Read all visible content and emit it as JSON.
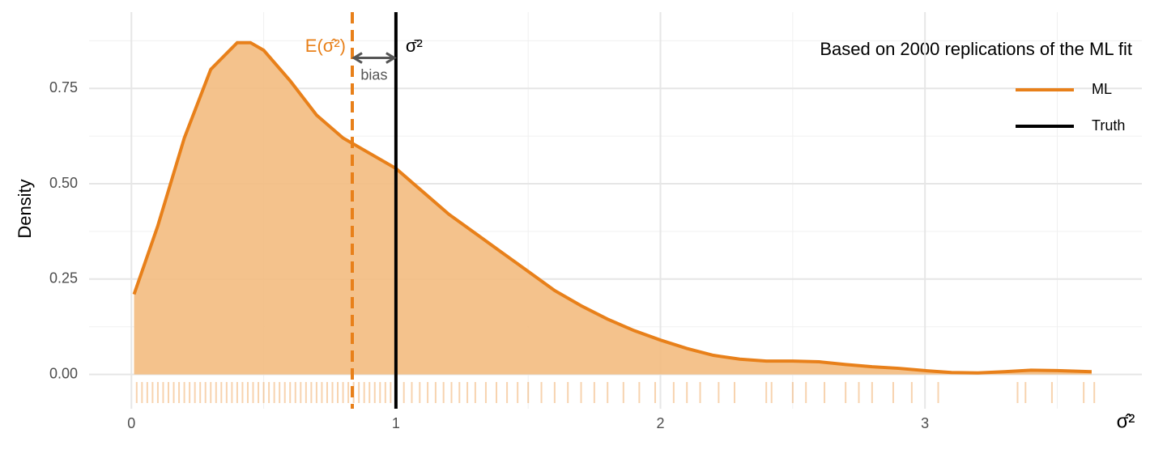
{
  "chart_data": {
    "type": "density",
    "ylabel": "Density",
    "xlabel": "σ̂²",
    "note": "Based on 2000 replications of the ML fit",
    "xlim": [
      -0.16,
      3.82
    ],
    "ylim": [
      -0.09,
      0.95
    ],
    "xticks": [
      0,
      1,
      2,
      3
    ],
    "xminor": [
      0.5,
      1.5,
      2.5,
      3.5
    ],
    "yticks": [
      {
        "value": 0,
        "label": "0.00"
      },
      {
        "value": 0.25,
        "label": "0.25"
      },
      {
        "value": 0.5,
        "label": "0.50"
      },
      {
        "value": 0.75,
        "label": "0.75"
      }
    ],
    "yminor": [
      0.125,
      0.375,
      0.625,
      0.875
    ],
    "grid": true,
    "x": [
      0.01,
      0.1,
      0.2,
      0.3,
      0.4,
      0.45,
      0.5,
      0.6,
      0.7,
      0.8,
      0.9,
      1.0,
      1.1,
      1.2,
      1.3,
      1.4,
      1.5,
      1.6,
      1.7,
      1.8,
      1.9,
      2.0,
      2.1,
      2.2,
      2.3,
      2.4,
      2.5,
      2.6,
      2.7,
      2.8,
      2.9,
      3.0,
      3.1,
      3.2,
      3.3,
      3.4,
      3.5,
      3.63
    ],
    "series": [
      {
        "name": "ML",
        "color": "#E8801A",
        "fill": "#F3BB80",
        "values": [
          0.21,
          0.39,
          0.62,
          0.8,
          0.87,
          0.87,
          0.85,
          0.77,
          0.68,
          0.62,
          0.58,
          0.54,
          0.48,
          0.42,
          0.37,
          0.32,
          0.27,
          0.22,
          0.18,
          0.145,
          0.115,
          0.09,
          0.068,
          0.05,
          0.04,
          0.035,
          0.035,
          0.033,
          0.026,
          0.02,
          0.016,
          0.01,
          0.005,
          0.004,
          0.007,
          0.011,
          0.01,
          0.007
        ]
      }
    ],
    "vlines": [
      {
        "name": "Truth",
        "label": "σ̄²",
        "x": 1,
        "color": "#000000",
        "dashed": false
      },
      {
        "label": "E(σ̂²)",
        "x": 0.835,
        "color": "#E8801A",
        "dashed": true
      }
    ],
    "bias": {
      "label": "bias",
      "from": 0.835,
      "to": 1,
      "y": 0.83
    },
    "legend_position": "top-right",
    "rug": [
      0.02,
      0.04,
      0.06,
      0.08,
      0.1,
      0.12,
      0.14,
      0.16,
      0.18,
      0.2,
      0.22,
      0.24,
      0.26,
      0.28,
      0.3,
      0.32,
      0.34,
      0.36,
      0.38,
      0.4,
      0.42,
      0.44,
      0.46,
      0.48,
      0.5,
      0.52,
      0.54,
      0.56,
      0.58,
      0.6,
      0.62,
      0.64,
      0.66,
      0.68,
      0.7,
      0.72,
      0.74,
      0.76,
      0.78,
      0.8,
      0.82,
      0.84,
      0.86,
      0.88,
      0.9,
      0.92,
      0.94,
      0.96,
      0.98,
      1.0,
      1.03,
      1.06,
      1.09,
      1.12,
      1.15,
      1.18,
      1.21,
      1.24,
      1.27,
      1.3,
      1.34,
      1.38,
      1.42,
      1.46,
      1.5,
      1.55,
      1.6,
      1.65,
      1.7,
      1.75,
      1.8,
      1.86,
      1.92,
      1.98,
      2.05,
      2.1,
      2.15,
      2.22,
      2.28,
      2.4,
      2.42,
      2.5,
      2.55,
      2.62,
      2.7,
      2.75,
      2.8,
      2.88,
      2.95,
      3.05,
      3.35,
      3.38,
      3.48,
      3.6,
      3.64
    ]
  }
}
